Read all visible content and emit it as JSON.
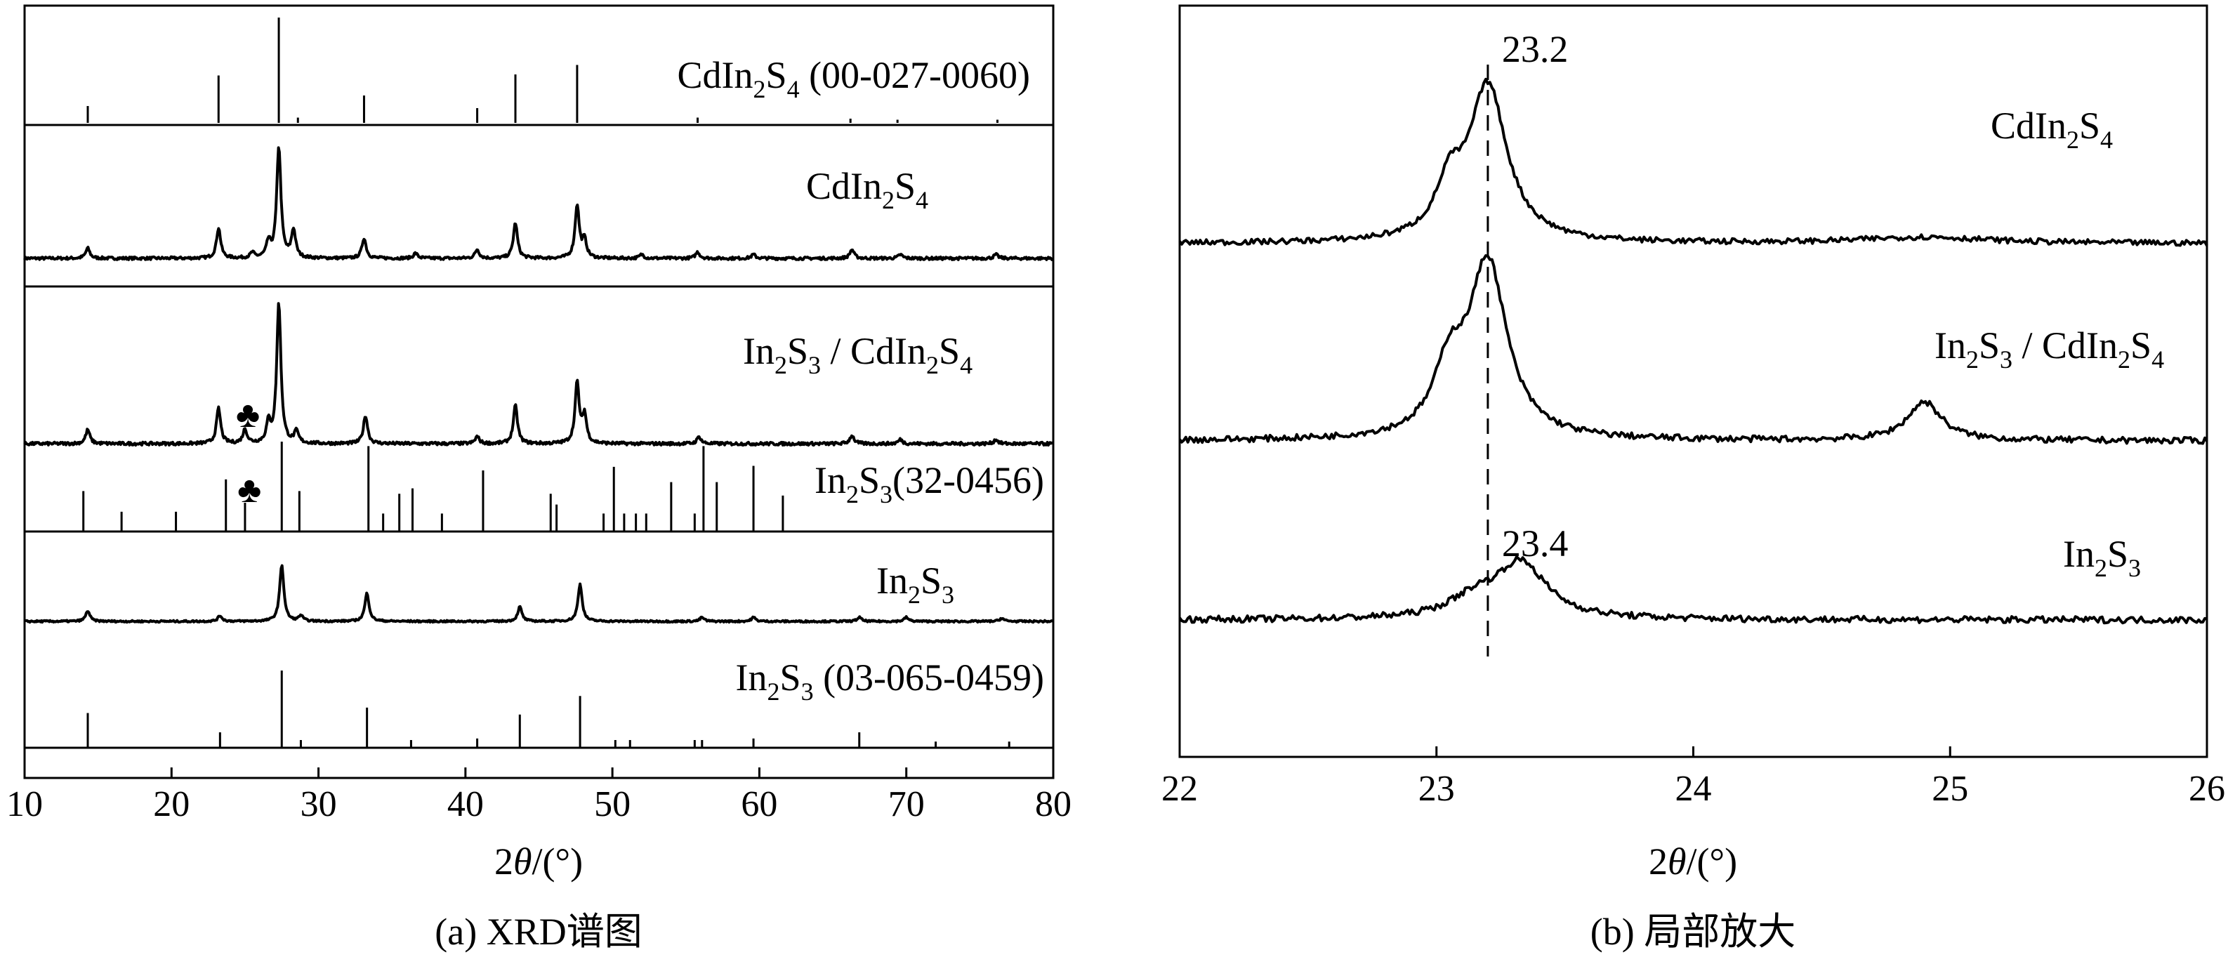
{
  "chart_data": [
    {
      "type": "line",
      "caption": "(a) XRD谱图",
      "xlabel": "2θ/(°)",
      "xlim": [
        10,
        80
      ],
      "xticks": [
        10,
        20,
        30,
        40,
        50,
        60,
        70,
        80
      ],
      "stack": [
        {
          "kind": "reference",
          "label": "CdIn2S4 (00-027-0060)",
          "lines": [
            [
              14.3,
              0.16
            ],
            [
              23.2,
              0.45
            ],
            [
              27.3,
              1.0
            ],
            [
              28.6,
              0.05
            ],
            [
              33.1,
              0.26
            ],
            [
              40.8,
              0.14
            ],
            [
              43.4,
              0.46
            ],
            [
              47.6,
              0.55
            ],
            [
              55.8,
              0.05
            ],
            [
              66.2,
              0.04
            ],
            [
              69.4,
              0.03
            ],
            [
              76.2,
              0.03
            ]
          ]
        },
        {
          "kind": "pattern",
          "label": "CdIn2S4",
          "peaks": [
            [
              14.3,
              0.08
            ],
            [
              23.2,
              0.24
            ],
            [
              25.5,
              0.04
            ],
            [
              26.6,
              0.12
            ],
            [
              27.3,
              0.88
            ],
            [
              28.3,
              0.22
            ],
            [
              33.1,
              0.16
            ],
            [
              36.6,
              0.04
            ],
            [
              40.8,
              0.07
            ],
            [
              43.4,
              0.28
            ],
            [
              47.6,
              0.42
            ],
            [
              48.1,
              0.14
            ],
            [
              52.0,
              0.03
            ],
            [
              55.8,
              0.05
            ],
            [
              59.6,
              0.03
            ],
            [
              66.3,
              0.07
            ],
            [
              69.6,
              0.03
            ],
            [
              76.1,
              0.03
            ]
          ]
        },
        {
          "kind": "pattern",
          "label": "In2S3/CdIn2S4",
          "marker": "♣",
          "peaks": [
            [
              14.3,
              0.1
            ],
            [
              23.2,
              0.25
            ],
            [
              25.0,
              0.1
            ],
            [
              26.6,
              0.14
            ],
            [
              27.3,
              1.0
            ],
            [
              28.5,
              0.08
            ],
            [
              33.2,
              0.2
            ],
            [
              40.8,
              0.05
            ],
            [
              43.4,
              0.27
            ],
            [
              47.6,
              0.43
            ],
            [
              48.1,
              0.2
            ],
            [
              55.9,
              0.05
            ],
            [
              66.3,
              0.06
            ],
            [
              69.6,
              0.03
            ],
            [
              76.1,
              0.03
            ]
          ]
        },
        {
          "kind": "reference",
          "label": "In2S3(32-0456)",
          "marker": "♣",
          "lines": [
            [
              14.0,
              0.45
            ],
            [
              16.6,
              0.22
            ],
            [
              20.3,
              0.22
            ],
            [
              23.7,
              0.58
            ],
            [
              25.0,
              0.32
            ],
            [
              27.5,
              1.0
            ],
            [
              28.7,
              0.45
            ],
            [
              33.4,
              0.95
            ],
            [
              34.4,
              0.2
            ],
            [
              35.5,
              0.42
            ],
            [
              36.4,
              0.48
            ],
            [
              38.4,
              0.2
            ],
            [
              41.2,
              0.68
            ],
            [
              45.8,
              0.42
            ],
            [
              46.2,
              0.3
            ],
            [
              49.4,
              0.2
            ],
            [
              50.1,
              0.72
            ],
            [
              50.8,
              0.2
            ],
            [
              51.6,
              0.2
            ],
            [
              52.3,
              0.2
            ],
            [
              54.0,
              0.55
            ],
            [
              55.6,
              0.2
            ],
            [
              56.2,
              0.95
            ],
            [
              57.1,
              0.55
            ],
            [
              59.6,
              0.73
            ],
            [
              61.6,
              0.4
            ]
          ]
        },
        {
          "kind": "pattern",
          "label": "In2S3",
          "peaks": [
            [
              14.3,
              0.13
            ],
            [
              23.3,
              0.07
            ],
            [
              27.5,
              0.7
            ],
            [
              28.8,
              0.07
            ],
            [
              33.3,
              0.35
            ],
            [
              43.7,
              0.18
            ],
            [
              47.8,
              0.46
            ],
            [
              56.1,
              0.05
            ],
            [
              59.6,
              0.05
            ],
            [
              66.8,
              0.05
            ],
            [
              70.0,
              0.05
            ],
            [
              76.5,
              0.04
            ]
          ]
        },
        {
          "kind": "reference",
          "label": "In2S3 (03-065-0459)",
          "lines": [
            [
              14.3,
              0.45
            ],
            [
              23.3,
              0.2
            ],
            [
              27.5,
              1.0
            ],
            [
              28.8,
              0.1
            ],
            [
              33.3,
              0.52
            ],
            [
              36.3,
              0.1
            ],
            [
              40.8,
              0.12
            ],
            [
              43.7,
              0.43
            ],
            [
              47.8,
              0.67
            ],
            [
              50.2,
              0.1
            ],
            [
              51.2,
              0.1
            ],
            [
              55.6,
              0.1
            ],
            [
              56.1,
              0.1
            ],
            [
              59.6,
              0.12
            ],
            [
              66.8,
              0.2
            ],
            [
              72.0,
              0.08
            ],
            [
              77.0,
              0.08
            ]
          ]
        }
      ]
    },
    {
      "type": "line",
      "caption": "(b) 局部放大",
      "xlabel": "2θ/(°)",
      "xlim": [
        22,
        26
      ],
      "xticks": [
        22,
        23,
        24,
        25,
        26
      ],
      "annotations": [
        {
          "x": 23.2,
          "label": "23.2"
        },
        {
          "x": 23.4,
          "label": "23.4"
        }
      ],
      "series": [
        {
          "name": "CdIn2S4",
          "peaks": [
            [
              23.2,
              1.0,
              0.09
            ],
            [
              23.05,
              0.3,
              0.06
            ],
            [
              24.9,
              0.04,
              0.3
            ]
          ]
        },
        {
          "name": "In2S3/CdIn2S4",
          "peaks": [
            [
              23.2,
              1.0,
              0.09
            ],
            [
              23.05,
              0.35,
              0.07
            ],
            [
              24.9,
              0.22,
              0.08
            ]
          ]
        },
        {
          "name": "In2S3",
          "peaks": [
            [
              23.33,
              0.3,
              0.12
            ],
            [
              23.15,
              0.1,
              0.12
            ]
          ]
        }
      ]
    }
  ]
}
